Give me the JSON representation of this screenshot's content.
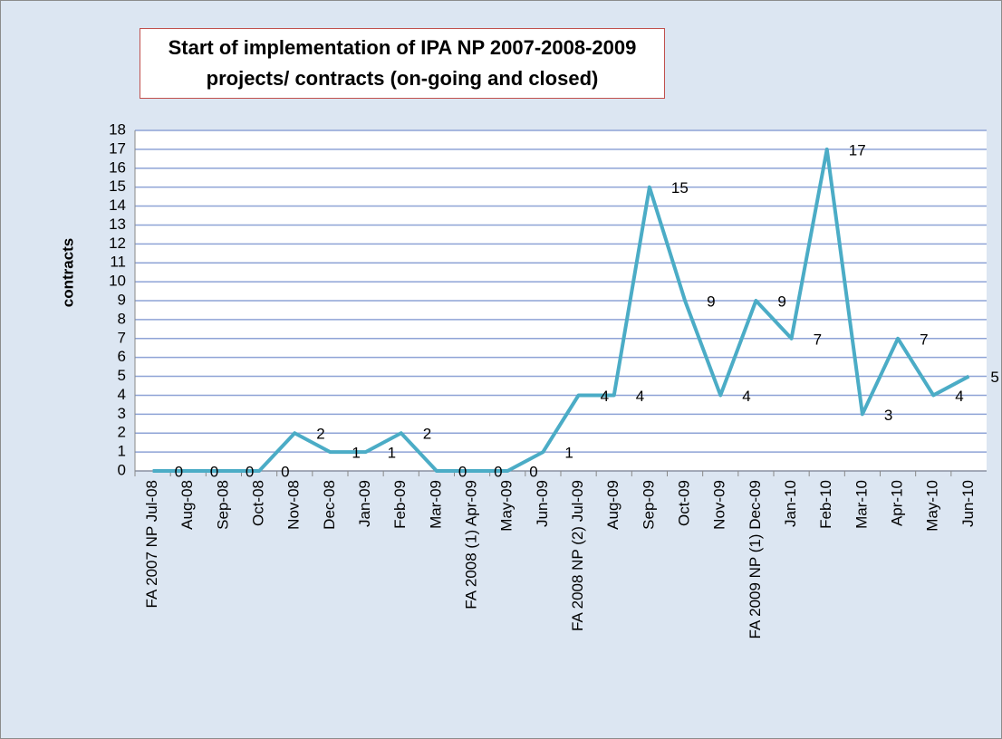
{
  "chart_data": {
    "type": "line",
    "title": "Start of implementation of IPA NP 2007-2008-2009 projects/ contracts (on-going and closed)",
    "y_label": "contracts",
    "categories": [
      "FA  2007 NP Jul-08",
      "Aug-08",
      "Sep-08",
      "Oct-08",
      "Nov-08",
      "Dec-08",
      "Jan-09",
      "Feb-09",
      "Mar-09",
      "FA 2008 (1) Apr-09",
      "May-09",
      "Jun-09",
      "FA 2008 NP (2) Jul-09",
      "Aug-09",
      "Sep-09",
      "Oct-09",
      "Nov-09",
      "FA 2009 NP (1) Dec-09",
      "Jan-10",
      "Feb-10",
      "Mar-10",
      "Apr-10",
      "May-10",
      "Jun-10"
    ],
    "series": [
      {
        "name": "contracts",
        "color": "#4bacc6",
        "values": [
          0,
          0,
          0,
          0,
          2,
          1,
          1,
          2,
          0,
          0,
          0,
          1,
          4,
          4,
          15,
          9,
          4,
          9,
          7,
          17,
          3,
          7,
          4,
          5
        ]
      }
    ],
    "ylim": [
      0,
      18
    ],
    "yticks": [
      0,
      1,
      2,
      3,
      4,
      5,
      6,
      7,
      8,
      9,
      10,
      11,
      12,
      13,
      14,
      15,
      16,
      17,
      18
    ],
    "grid": true
  }
}
